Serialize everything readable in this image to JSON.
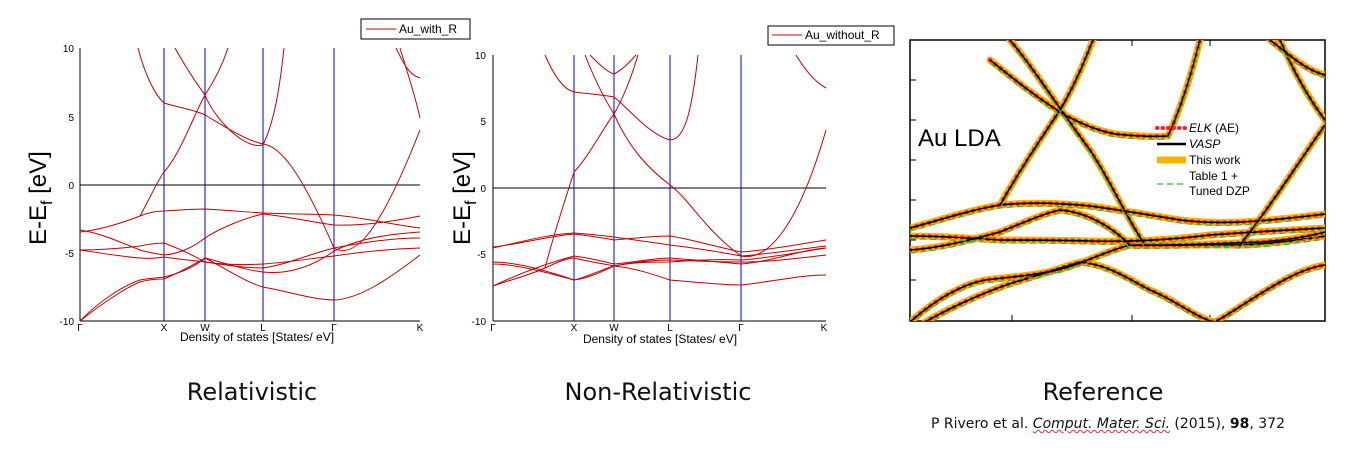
{
  "charts": [
    {
      "id": "rel",
      "legend": "Au_with_R",
      "ylabel_main": "E-E",
      "ylabel_sub": "f",
      "ylabel_unit": " [eV]",
      "xlabel": "Density of states [States/ eV]",
      "yticks": [
        "10",
        "5",
        "0",
        "-5",
        "-10"
      ],
      "kpoints": [
        "Γ",
        "X",
        "W",
        "L",
        "Γ",
        "K"
      ]
    },
    {
      "id": "nonrel",
      "legend": "Au_without_R",
      "ylabel_main": "E-E",
      "ylabel_sub": "f",
      "ylabel_unit": " [eV]",
      "xlabel": "Density of states [States/ eV]",
      "yticks": [
        "10",
        "5",
        "0",
        "-5",
        "-10"
      ],
      "kpoints": [
        "Γ",
        "X",
        "W",
        "L",
        "Γ",
        "K"
      ]
    }
  ],
  "chart_data": [
    {
      "type": "line",
      "legend": [
        "Au_with_R"
      ],
      "xlabel": "Density of states [States/ eV]",
      "ylabel": "E-Ef [eV]",
      "ylim": [
        -10,
        10
      ],
      "xticks": [
        "Γ",
        "X",
        "W",
        "L",
        "Γ",
        "K"
      ],
      "series": [
        {
          "name": "Au_with_R",
          "points": [
            [
              0,
              -3.3
            ],
            [
              0.7,
              -2.5
            ],
            [
              1,
              -2.2
            ],
            [
              1.5,
              -2.3
            ],
            [
              2,
              -2.3
            ],
            [
              2.5,
              -2.1
            ],
            [
              3,
              -3.5
            ],
            [
              4,
              -3.3
            ],
            [
              4.5,
              -3.0
            ]
          ]
        }
      ]
    },
    {
      "type": "line",
      "legend": [
        "Au_without_R"
      ],
      "xlabel": "Density of states [States/ eV]",
      "ylabel": "E-Ef [eV]",
      "ylim": [
        -10,
        10
      ],
      "xticks": [
        "Γ",
        "X",
        "W",
        "L",
        "Γ",
        "K"
      ],
      "series": [
        {
          "name": "Au_without_R",
          "points": [
            [
              0,
              -4.5
            ],
            [
              1,
              -3.4
            ],
            [
              1.5,
              -3.5
            ],
            [
              2,
              -3.5
            ],
            [
              2.5,
              -3.8
            ],
            [
              3,
              -4.5
            ],
            [
              4,
              -3.8
            ]
          ]
        }
      ]
    },
    {
      "type": "line",
      "legend": [
        "ELK (AE)",
        "VASP",
        "This work",
        "Table 1 + Tuned DZP"
      ],
      "series": [
        {
          "name": "ELK (AE)"
        },
        {
          "name": "VASP"
        },
        {
          "name": "This work"
        },
        {
          "name": "Table 1 + Tuned DZP"
        }
      ]
    }
  ],
  "reference": {
    "title": "Au LDA",
    "legend": [
      {
        "label_italic": "ELK",
        "label_rest": " (AE)"
      },
      {
        "label_italic": "VASP",
        "label_rest": ""
      },
      {
        "label_italic": "",
        "label_rest": "This work"
      },
      {
        "label_italic": "",
        "label_rest": "Table 1 +"
      },
      {
        "label_italic": "",
        "label_rest": "Tuned DZP"
      }
    ]
  },
  "captions": {
    "left": "Relativistic",
    "middle": "Non-Relativistic",
    "right": "Reference"
  },
  "citation": {
    "authors": "P Rivero et al. ",
    "journal": "Comput. Mater. Sci.",
    "year": " (2015), ",
    "volume": "98",
    "pages": ", 372"
  },
  "colors": {
    "band": "#c00000",
    "kline": "#0000cc",
    "elk": "#ff2020",
    "vasp": "#000000",
    "thiswork": "#f5b400",
    "dzp": "#33bb33"
  }
}
